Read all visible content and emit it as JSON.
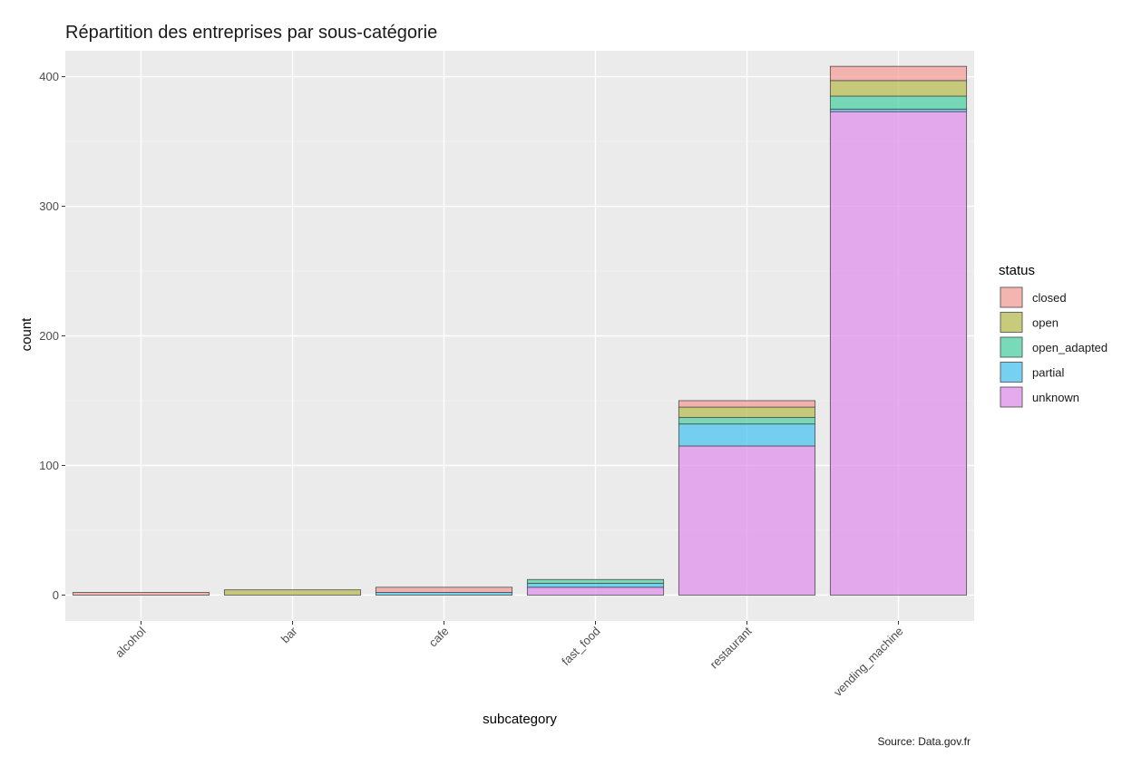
{
  "chart_data": {
    "type": "bar",
    "stacked": true,
    "title": "Répartition des entreprises par sous-catégorie",
    "xlabel": "subcategory",
    "ylabel": "count",
    "caption": "Source: Data.gov.fr",
    "categories": [
      "alcohol",
      "bar",
      "cafe",
      "fast_food",
      "restaurant",
      "vending_machine"
    ],
    "ylim": [
      -20,
      420
    ],
    "yticks": [
      0,
      100,
      200,
      300,
      400
    ],
    "grid": true,
    "legend": {
      "title": "status",
      "placement": "right"
    },
    "series": [
      {
        "name": "closed",
        "color": "#f4a09a",
        "values": [
          2,
          0,
          4,
          0,
          5,
          11
        ]
      },
      {
        "name": "open",
        "color": "#b8bd53",
        "values": [
          0,
          4,
          0,
          0,
          8,
          12
        ]
      },
      {
        "name": "open_adapted",
        "color": "#4fd1a5",
        "values": [
          0,
          0,
          0,
          3,
          5,
          10
        ]
      },
      {
        "name": "partial",
        "color": "#4cc4f0",
        "values": [
          0,
          0,
          2,
          3,
          17,
          2
        ]
      },
      {
        "name": "unknown",
        "color": "#e090ec",
        "values": [
          0,
          0,
          0,
          6,
          115,
          373
        ]
      }
    ]
  }
}
